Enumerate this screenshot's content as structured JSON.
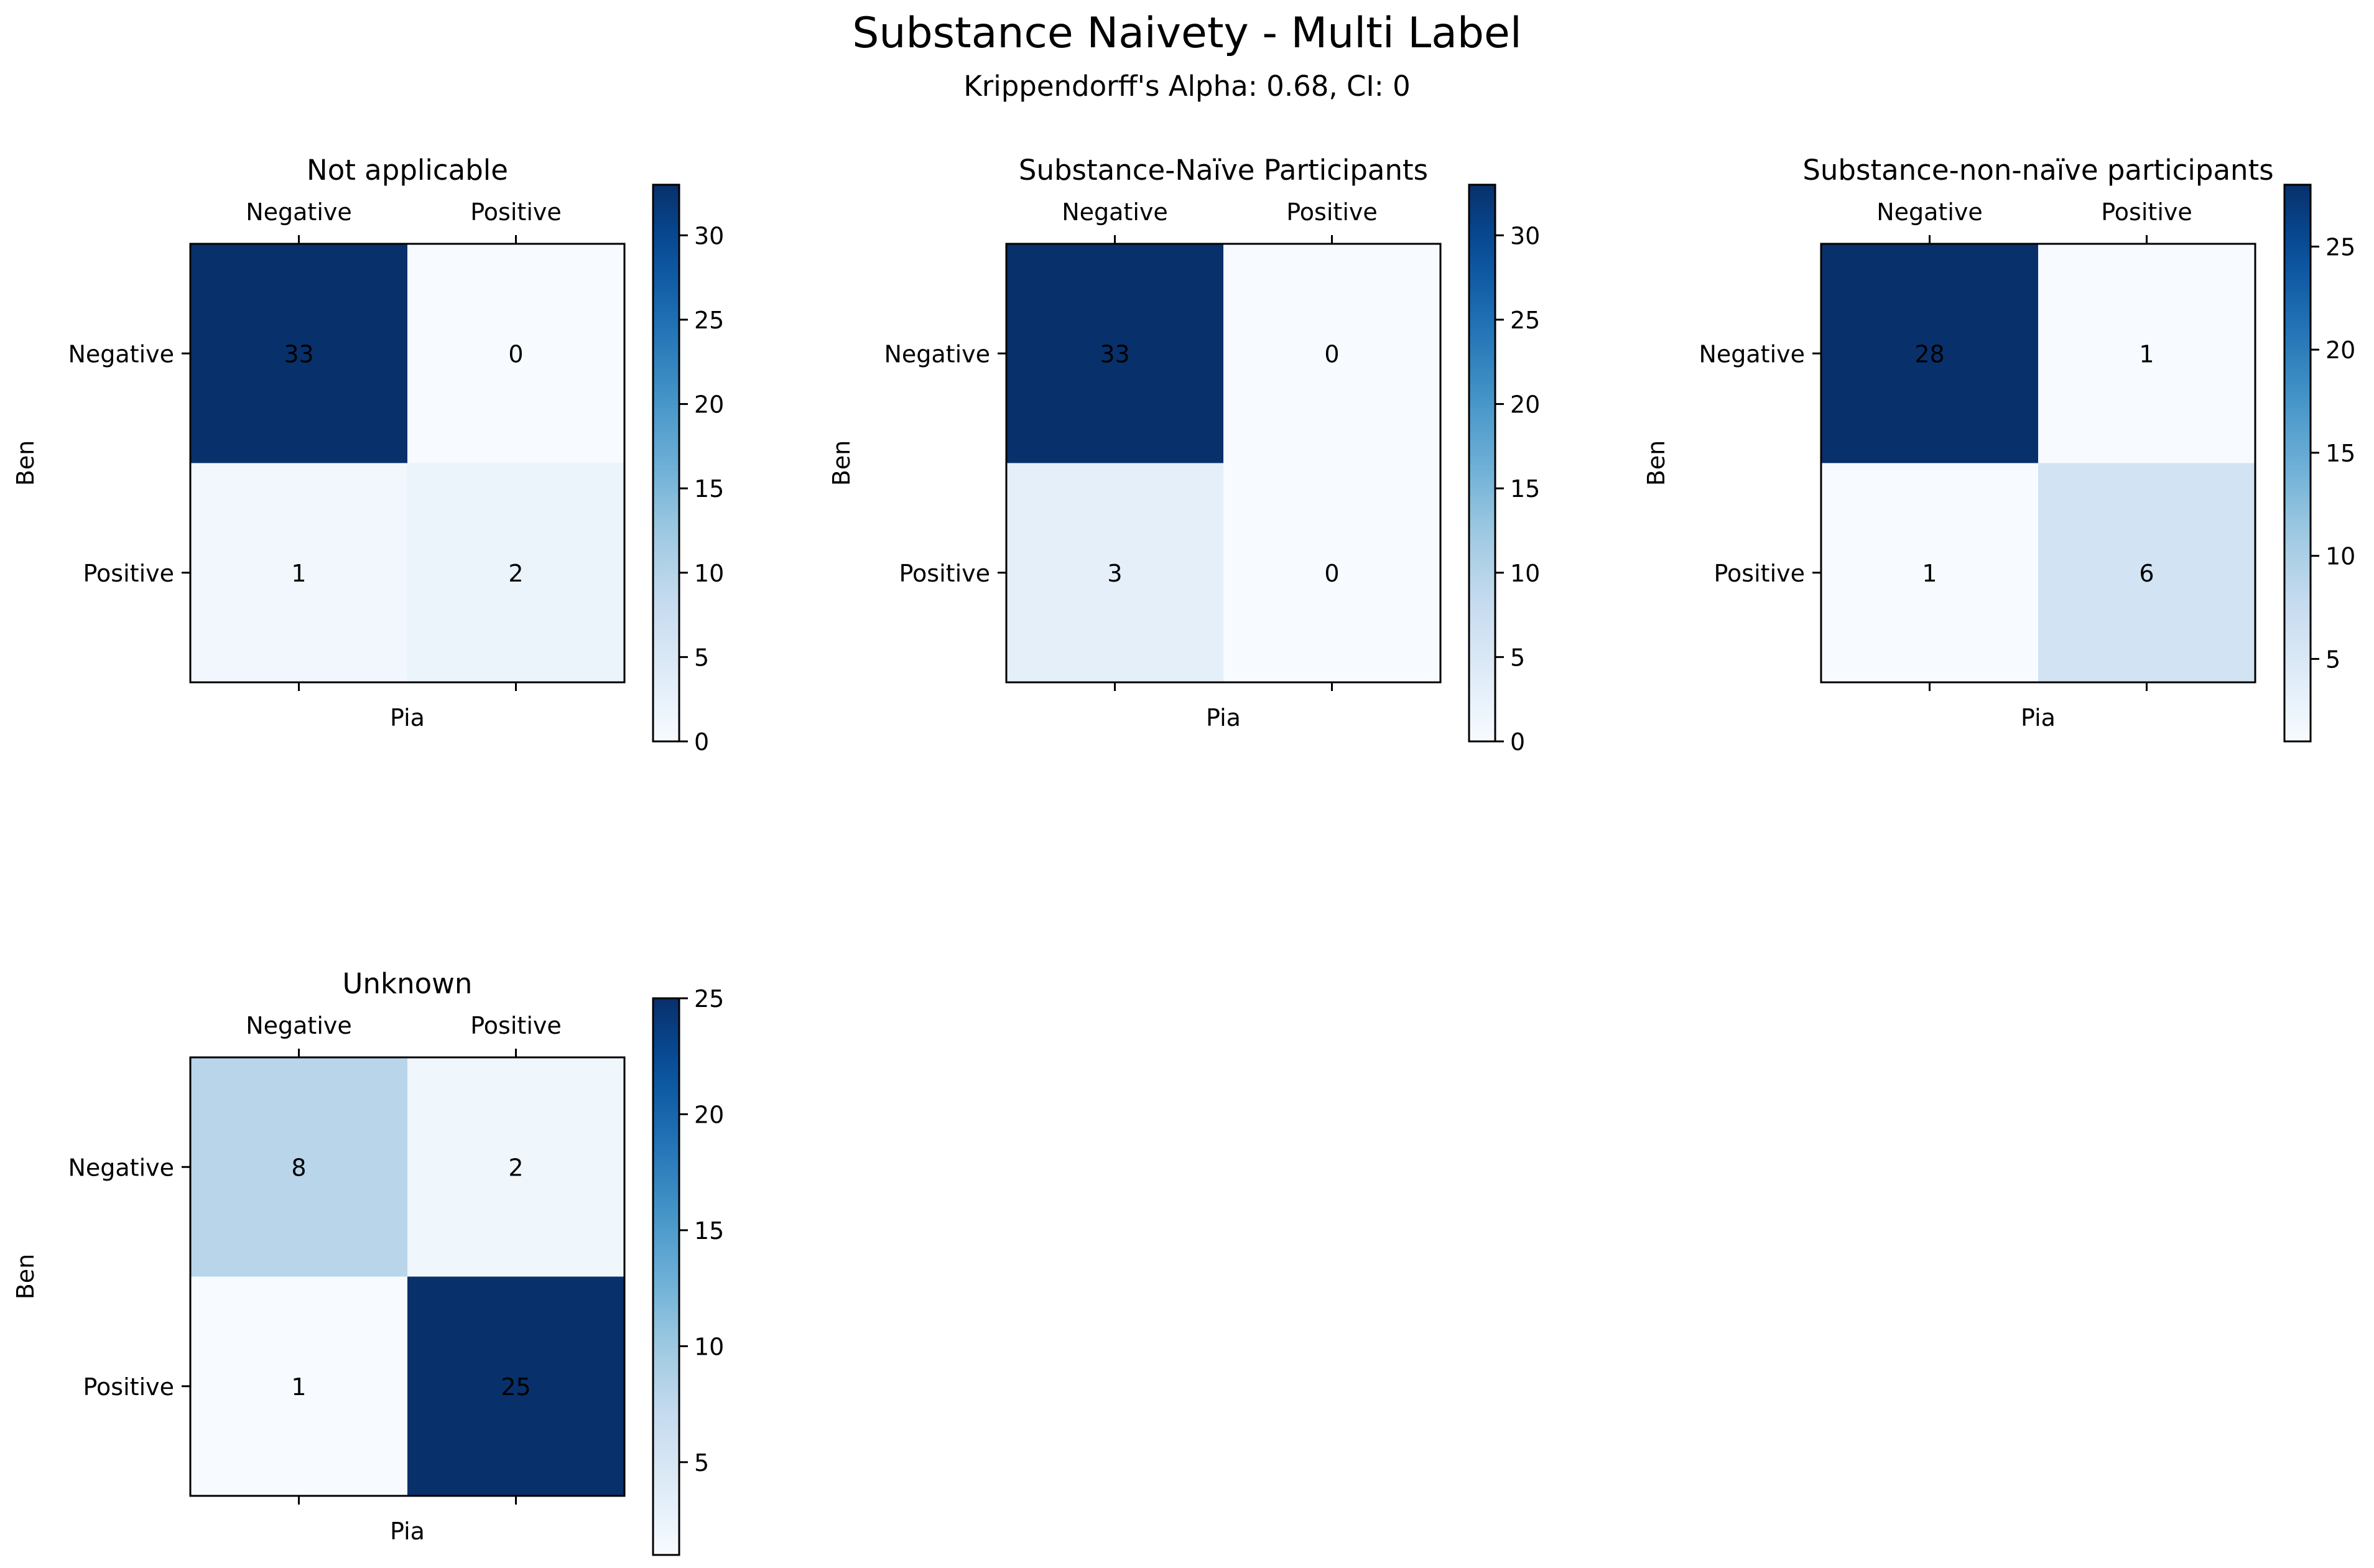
{
  "figure": {
    "title": "Substance Naivety - Multi Label",
    "subtitle": "Krippendorff's Alpha: 0.68, CI: 0"
  },
  "chart_data": [
    {
      "type": "heatmap",
      "title": "Not applicable",
      "xlabel": "Pia",
      "ylabel": "Ben",
      "x_categories": [
        "Negative",
        "Positive"
      ],
      "y_categories": [
        "Negative",
        "Positive"
      ],
      "values": [
        [
          33,
          0
        ],
        [
          1,
          2
        ]
      ],
      "colormap": "Blues",
      "colorbar_range": [
        0,
        33
      ],
      "colorbar_ticks": [
        0,
        5,
        10,
        15,
        20,
        25,
        30
      ]
    },
    {
      "type": "heatmap",
      "title": "Substance-Naïve Participants",
      "xlabel": "Pia",
      "ylabel": "Ben",
      "x_categories": [
        "Negative",
        "Positive"
      ],
      "y_categories": [
        "Negative",
        "Positive"
      ],
      "values": [
        [
          33,
          0
        ],
        [
          3,
          0
        ]
      ],
      "colormap": "Blues",
      "colorbar_range": [
        0,
        33
      ],
      "colorbar_ticks": [
        0,
        5,
        10,
        15,
        20,
        25,
        30
      ]
    },
    {
      "type": "heatmap",
      "title": "Substance-non-naïve participants",
      "xlabel": "Pia",
      "ylabel": "Ben",
      "x_categories": [
        "Negative",
        "Positive"
      ],
      "y_categories": [
        "Negative",
        "Positive"
      ],
      "values": [
        [
          28,
          1
        ],
        [
          1,
          6
        ]
      ],
      "colormap": "Blues",
      "colorbar_range": [
        1,
        28
      ],
      "colorbar_ticks": [
        5,
        10,
        15,
        20,
        25
      ]
    },
    {
      "type": "heatmap",
      "title": "Unknown",
      "xlabel": "Pia",
      "ylabel": "Ben",
      "x_categories": [
        "Negative",
        "Positive"
      ],
      "y_categories": [
        "Negative",
        "Positive"
      ],
      "values": [
        [
          8,
          2
        ],
        [
          1,
          25
        ]
      ],
      "colormap": "Blues",
      "colorbar_range": [
        1,
        25
      ],
      "colorbar_ticks": [
        5,
        10,
        15,
        20,
        25
      ]
    }
  ]
}
